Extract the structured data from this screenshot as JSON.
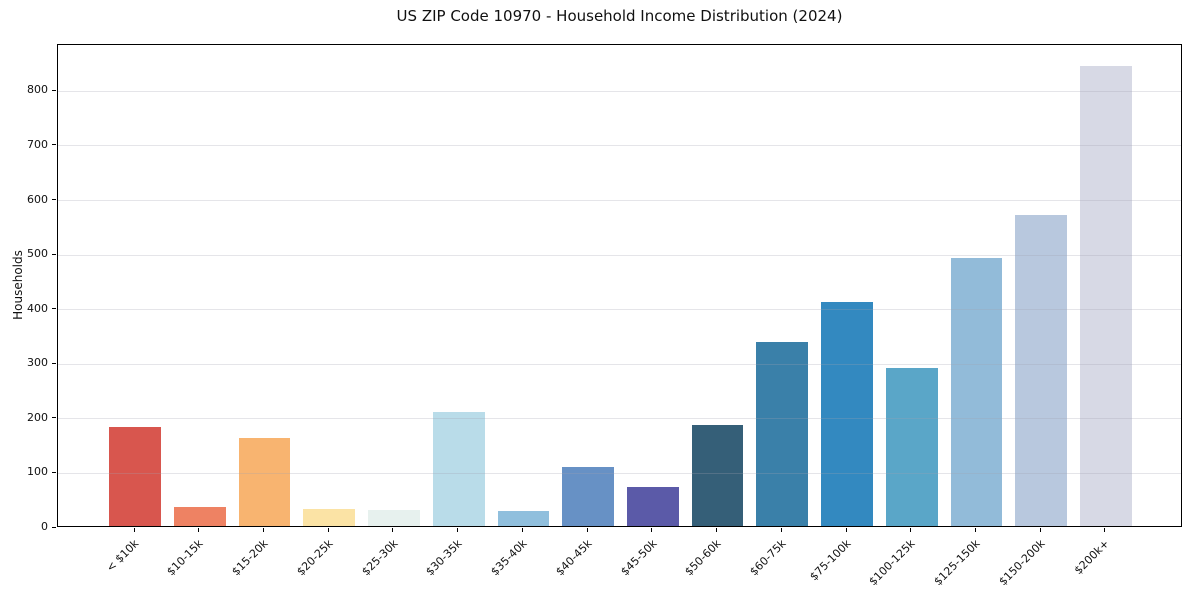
{
  "chart_data": {
    "type": "bar",
    "title": "US ZIP Code 10970 - Household Income Distribution (2024)",
    "xlabel": "",
    "ylabel": "Households",
    "categories": [
      "< $10k",
      "$10-15k",
      "$15-20k",
      "$20-25k",
      "$25-30k",
      "$30-35k",
      "$35-40k",
      "$40-45k",
      "$45-50k",
      "$50-60k",
      "$60-75k",
      "$75-100k",
      "$100-125k",
      "$125-150k",
      "$150-200k",
      "$200k+"
    ],
    "values": [
      182,
      34,
      162,
      31,
      29,
      209,
      28,
      109,
      72,
      185,
      338,
      410,
      289,
      492,
      569,
      842
    ],
    "bar_colors": [
      "#d8564e",
      "#ee8263",
      "#f8b470",
      "#fbe3a5",
      "#e7f1ee",
      "#b9dce9",
      "#90bfdd",
      "#6791c5",
      "#5b5aa8",
      "#355f78",
      "#3a80a9",
      "#3389c0",
      "#5aa6c8",
      "#92bbd9",
      "#b8c8de",
      "#d7d9e5"
    ],
    "ylim": [
      0,
      885
    ],
    "yticks": [
      0,
      100,
      200,
      300,
      400,
      500,
      600,
      700,
      800
    ],
    "grid": "horizontal-light",
    "legend": "none",
    "frame": "full-box",
    "x_tick_rotation_deg": 45
  },
  "colors": {
    "background": "#ffffff",
    "axis": "#000000",
    "gridline": "#e6e6ea",
    "text": "#111111"
  }
}
